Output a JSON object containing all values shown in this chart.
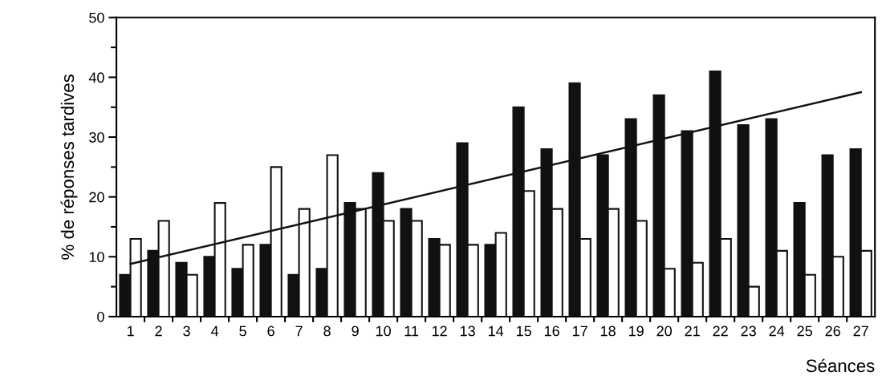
{
  "chart_data": {
    "type": "bar",
    "xlabel": "Séances",
    "ylabel": "% de réponses tardives",
    "categories": [
      "1",
      "2",
      "3",
      "4",
      "5",
      "6",
      "7",
      "8",
      "9",
      "10",
      "11",
      "12",
      "13",
      "14",
      "15",
      "16",
      "17",
      "18",
      "19",
      "20",
      "21",
      "22",
      "23",
      "24",
      "25",
      "26",
      "27"
    ],
    "series": [
      {
        "color": "#111111",
        "values": [
          7,
          11,
          9,
          10,
          8,
          12,
          7,
          8,
          19,
          24,
          18,
          13,
          29,
          12,
          35,
          28,
          39,
          27,
          33,
          37,
          31,
          41,
          32,
          33,
          19,
          27,
          28
        ]
      },
      {
        "color": "#ffffff",
        "values": [
          13,
          16,
          7,
          19,
          12,
          25,
          18,
          27,
          18,
          16,
          16,
          12,
          12,
          14,
          21,
          18,
          13,
          18,
          16,
          8,
          9,
          13,
          5,
          11,
          7,
          10,
          11
        ]
      },
      {
        "type": "line",
        "color": "#111111",
        "x": [
          "1",
          "27"
        ],
        "values": [
          8.8,
          37.5
        ]
      }
    ],
    "ylim": [
      0,
      50
    ],
    "yticks": [
      0,
      10,
      20,
      30,
      40,
      50
    ],
    "grid": false,
    "legend": false
  }
}
